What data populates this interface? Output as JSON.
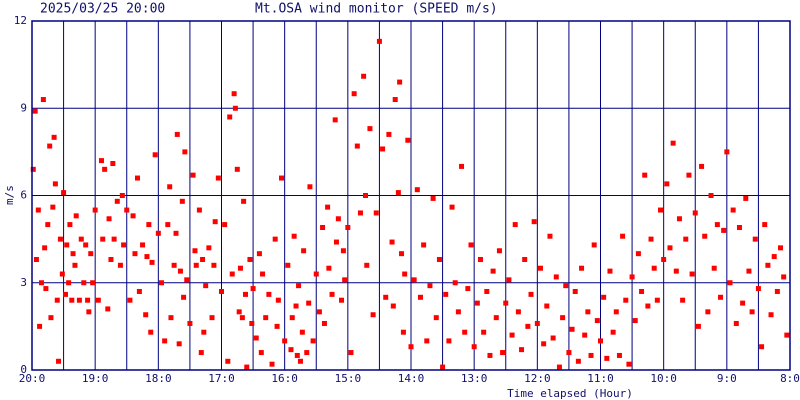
{
  "chart_data": {
    "type": "scatter",
    "timestamp": "2025/03/25 20:00",
    "title": "Mt.OSA wind monitor (SPEED m/s)",
    "y_label": "m/s",
    "x_label": "Time elapsed (Hour)",
    "color": "#ff0000",
    "grid": true,
    "xlim": [
      0,
      12
    ],
    "xticks": [
      {
        "value": 0,
        "label": "20:0"
      },
      {
        "value": 1,
        "label": "19:0"
      },
      {
        "value": 2,
        "label": "18:0"
      },
      {
        "value": 3,
        "label": "17:0"
      },
      {
        "value": 4,
        "label": "16:0"
      },
      {
        "value": 5,
        "label": "15:0"
      },
      {
        "value": 6,
        "label": "14:0"
      },
      {
        "value": 7,
        "label": "13:0"
      },
      {
        "value": 8,
        "label": "12:0"
      },
      {
        "value": 9,
        "label": "11:0"
      },
      {
        "value": 10,
        "label": "10:0"
      },
      {
        "value": 11,
        "label": "9:0"
      },
      {
        "value": 12,
        "label": "8:0"
      }
    ],
    "ylim": [
      0,
      12
    ],
    "yticks": [
      0,
      3,
      6,
      9,
      12
    ],
    "x": [
      0.02,
      0.05,
      0.07,
      0.1,
      0.12,
      0.15,
      0.18,
      0.2,
      0.22,
      0.25,
      0.28,
      0.3,
      0.33,
      0.35,
      0.37,
      0.4,
      0.42,
      0.45,
      0.48,
      0.5,
      0.53,
      0.55,
      0.58,
      0.6,
      0.63,
      0.65,
      0.68,
      0.7,
      0.75,
      0.78,
      0.82,
      0.85,
      0.88,
      0.9,
      0.93,
      0.96,
      1.0,
      1.05,
      1.1,
      1.12,
      1.15,
      1.2,
      1.22,
      1.25,
      1.28,
      1.3,
      1.35,
      1.4,
      1.43,
      1.45,
      1.5,
      1.55,
      1.6,
      1.63,
      1.67,
      1.7,
      1.75,
      1.8,
      1.82,
      1.85,
      1.88,
      1.9,
      1.95,
      2.0,
      2.05,
      2.1,
      2.15,
      2.18,
      2.2,
      2.25,
      2.28,
      2.3,
      2.33,
      2.35,
      2.38,
      2.4,
      2.42,
      2.45,
      2.5,
      2.55,
      2.58,
      2.6,
      2.65,
      2.68,
      2.7,
      2.72,
      2.75,
      2.8,
      2.85,
      2.88,
      2.9,
      2.95,
      3.0,
      3.05,
      3.1,
      3.13,
      3.17,
      3.2,
      3.22,
      3.25,
      3.28,
      3.3,
      3.33,
      3.35,
      3.38,
      3.4,
      3.45,
      3.48,
      3.5,
      3.55,
      3.6,
      3.63,
      3.65,
      3.7,
      3.75,
      3.8,
      3.85,
      3.88,
      3.9,
      3.95,
      4.0,
      4.05,
      4.1,
      4.12,
      4.15,
      4.18,
      4.2,
      4.22,
      4.25,
      4.28,
      4.3,
      4.35,
      4.38,
      4.4,
      4.45,
      4.5,
      4.55,
      4.6,
      4.63,
      4.68,
      4.7,
      4.75,
      4.8,
      4.82,
      4.85,
      4.9,
      4.93,
      4.95,
      5.0,
      5.05,
      5.1,
      5.15,
      5.2,
      5.25,
      5.28,
      5.3,
      5.35,
      5.4,
      5.45,
      5.5,
      5.55,
      5.6,
      5.65,
      5.7,
      5.72,
      5.75,
      5.8,
      5.82,
      5.85,
      5.88,
      5.9,
      5.95,
      6.0,
      6.05,
      6.1,
      6.15,
      6.2,
      6.25,
      6.3,
      6.35,
      6.4,
      6.45,
      6.5,
      6.55,
      6.6,
      6.65,
      6.7,
      6.75,
      6.8,
      6.85,
      6.9,
      6.95,
      7.0,
      7.05,
      7.1,
      7.15,
      7.2,
      7.25,
      7.3,
      7.35,
      7.4,
      7.45,
      7.5,
      7.55,
      7.6,
      7.65,
      7.7,
      7.75,
      7.8,
      7.85,
      7.9,
      7.95,
      8.0,
      8.05,
      8.1,
      8.15,
      8.2,
      8.25,
      8.3,
      8.35,
      8.4,
      8.45,
      8.5,
      8.55,
      8.6,
      8.65,
      8.7,
      8.75,
      8.8,
      8.85,
      8.9,
      8.95,
      9.0,
      9.05,
      9.1,
      9.15,
      9.2,
      9.25,
      9.3,
      9.35,
      9.4,
      9.45,
      9.5,
      9.55,
      9.6,
      9.65,
      9.7,
      9.75,
      9.8,
      9.85,
      9.9,
      9.95,
      10.0,
      10.05,
      10.1,
      10.15,
      10.2,
      10.25,
      10.3,
      10.35,
      10.4,
      10.45,
      10.5,
      10.55,
      10.6,
      10.65,
      10.7,
      10.75,
      10.8,
      10.85,
      10.9,
      10.95,
      11.0,
      11.05,
      11.1,
      11.15,
      11.2,
      11.25,
      11.3,
      11.35,
      11.4,
      11.45,
      11.5,
      11.55,
      11.6,
      11.65,
      11.7,
      11.75,
      11.8,
      11.85,
      11.9,
      11.95
    ],
    "values": [
      6.9,
      8.9,
      3.8,
      5.5,
      1.5,
      3.0,
      9.3,
      4.2,
      2.8,
      5.0,
      7.7,
      1.8,
      5.6,
      8.0,
      6.4,
      2.4,
      0.3,
      4.5,
      3.3,
      6.1,
      2.6,
      4.3,
      3.0,
      5.0,
      2.4,
      4.0,
      3.6,
      5.3,
      2.4,
      4.5,
      3.0,
      4.3,
      2.4,
      2.0,
      4.0,
      3.0,
      5.5,
      2.4,
      7.2,
      4.5,
      6.9,
      2.1,
      5.2,
      3.8,
      7.1,
      4.5,
      5.8,
      3.6,
      6.0,
      4.3,
      5.5,
      2.4,
      5.3,
      4.0,
      6.6,
      2.7,
      4.3,
      1.9,
      3.9,
      5.0,
      1.3,
      3.7,
      7.4,
      4.7,
      3.0,
      1.0,
      5.0,
      6.3,
      1.8,
      3.6,
      4.7,
      8.1,
      0.9,
      3.4,
      5.8,
      2.5,
      7.5,
      3.1,
      1.6,
      6.7,
      4.1,
      3.6,
      5.5,
      0.6,
      3.8,
      1.3,
      2.9,
      4.2,
      1.8,
      3.6,
      5.1,
      6.6,
      2.7,
      5.0,
      0.3,
      8.7,
      3.3,
      9.5,
      9.0,
      6.9,
      2.0,
      3.5,
      1.8,
      5.8,
      2.6,
      0.1,
      3.8,
      1.6,
      2.8,
      1.1,
      4.0,
      0.6,
      3.3,
      1.8,
      2.6,
      0.2,
      4.5,
      1.5,
      2.4,
      6.6,
      1.0,
      3.6,
      0.7,
      1.8,
      4.6,
      2.2,
      0.5,
      2.9,
      0.3,
      1.3,
      4.1,
      0.6,
      2.3,
      6.3,
      1.0,
      3.3,
      2.0,
      4.9,
      1.6,
      5.6,
      3.5,
      2.6,
      8.6,
      4.4,
      5.2,
      2.4,
      4.1,
      3.1,
      4.9,
      0.6,
      9.5,
      7.7,
      5.4,
      10.1,
      6.0,
      3.6,
      8.3,
      1.9,
      5.4,
      11.3,
      7.6,
      2.5,
      8.1,
      4.4,
      2.2,
      9.3,
      6.1,
      9.9,
      4.0,
      1.3,
      3.3,
      7.9,
      0.8,
      3.1,
      6.2,
      2.5,
      4.3,
      1.0,
      2.9,
      5.9,
      1.8,
      3.8,
      0.1,
      2.6,
      1.0,
      5.6,
      3.0,
      2.0,
      7.0,
      1.3,
      2.8,
      4.3,
      0.8,
      2.3,
      3.8,
      1.3,
      2.7,
      0.5,
      3.4,
      1.8,
      4.1,
      0.6,
      2.3,
      3.1,
      1.2,
      5.0,
      2.0,
      0.7,
      3.8,
      1.5,
      2.6,
      5.1,
      1.6,
      3.5,
      0.9,
      2.2,
      4.6,
      1.1,
      3.2,
      0.1,
      1.8,
      2.9,
      0.6,
      1.4,
      2.7,
      0.3,
      3.5,
      1.2,
      2.0,
      0.5,
      4.3,
      1.7,
      1.0,
      2.5,
      0.4,
      3.4,
      1.3,
      2.0,
      0.5,
      4.6,
      2.4,
      0.2,
      3.2,
      1.7,
      4.0,
      2.7,
      6.7,
      2.2,
      4.5,
      3.5,
      2.4,
      5.5,
      3.8,
      6.4,
      4.2,
      7.8,
      3.4,
      5.2,
      2.4,
      4.5,
      6.7,
      3.3,
      5.4,
      1.5,
      7.0,
      4.6,
      2.0,
      6.0,
      3.5,
      5.0,
      2.5,
      4.8,
      7.5,
      3.0,
      5.5,
      1.6,
      4.9,
      2.3,
      5.9,
      3.4,
      2.0,
      4.5,
      2.8,
      0.8,
      5.0,
      3.6,
      1.9,
      3.9,
      2.7,
      4.2,
      3.2,
      1.2
    ]
  }
}
